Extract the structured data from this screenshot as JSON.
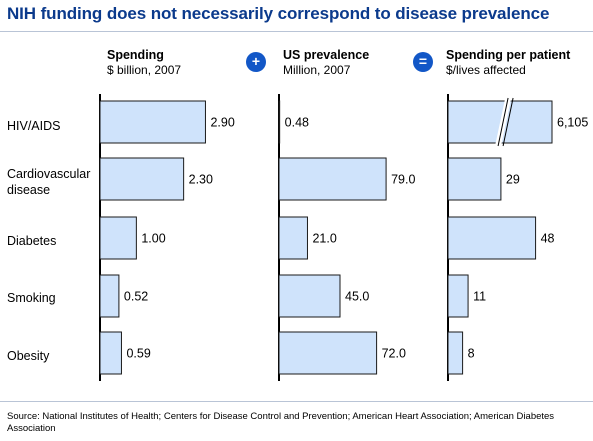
{
  "title": "NIH funding does not necessarily correspond to disease prevalence",
  "operators": {
    "plus": "+",
    "equals": "="
  },
  "source": "Source: National Institutes of Health; Centers for Disease Control and Prevention; American Heart Association; American Diabetes Association",
  "chart_data": [
    {
      "type": "bar",
      "title": "Spending",
      "subtitle": "$ billion, 2007",
      "categories": [
        "HIV/AIDS",
        "Cardiovascular\ndisease",
        "Diabetes",
        "Smoking",
        "Obesity"
      ],
      "values": [
        2.9,
        2.3,
        1.0,
        0.52,
        0.59
      ],
      "value_labels": [
        "2.90",
        "2.30",
        "1.00",
        "0.52",
        "0.59"
      ],
      "xlim": [
        0,
        3.3
      ]
    },
    {
      "type": "bar",
      "title": "US prevalence",
      "subtitle": "Million, 2007",
      "categories": [
        "HIV/AIDS",
        "Cardiovascular\ndisease",
        "Diabetes",
        "Smoking",
        "Obesity"
      ],
      "values": [
        0.48,
        79.0,
        21.0,
        45.0,
        72.0
      ],
      "value_labels": [
        "0.48",
        "79.0",
        "21.0",
        "45.0",
        "72.0"
      ],
      "xlim": [
        0,
        90
      ]
    },
    {
      "type": "bar",
      "title": "Spending per patient",
      "subtitle": "$/lives affected",
      "categories": [
        "HIV/AIDS",
        "Cardiovascular\ndisease",
        "Diabetes",
        "Smoking",
        "Obesity"
      ],
      "values": [
        6105,
        29,
        48,
        11,
        8
      ],
      "value_labels": [
        "6,105",
        "29",
        "48",
        "11",
        "8"
      ],
      "axis_break": {
        "category": "HIV/AIDS",
        "display_max": 57
      },
      "xlim": [
        0,
        57
      ]
    }
  ]
}
